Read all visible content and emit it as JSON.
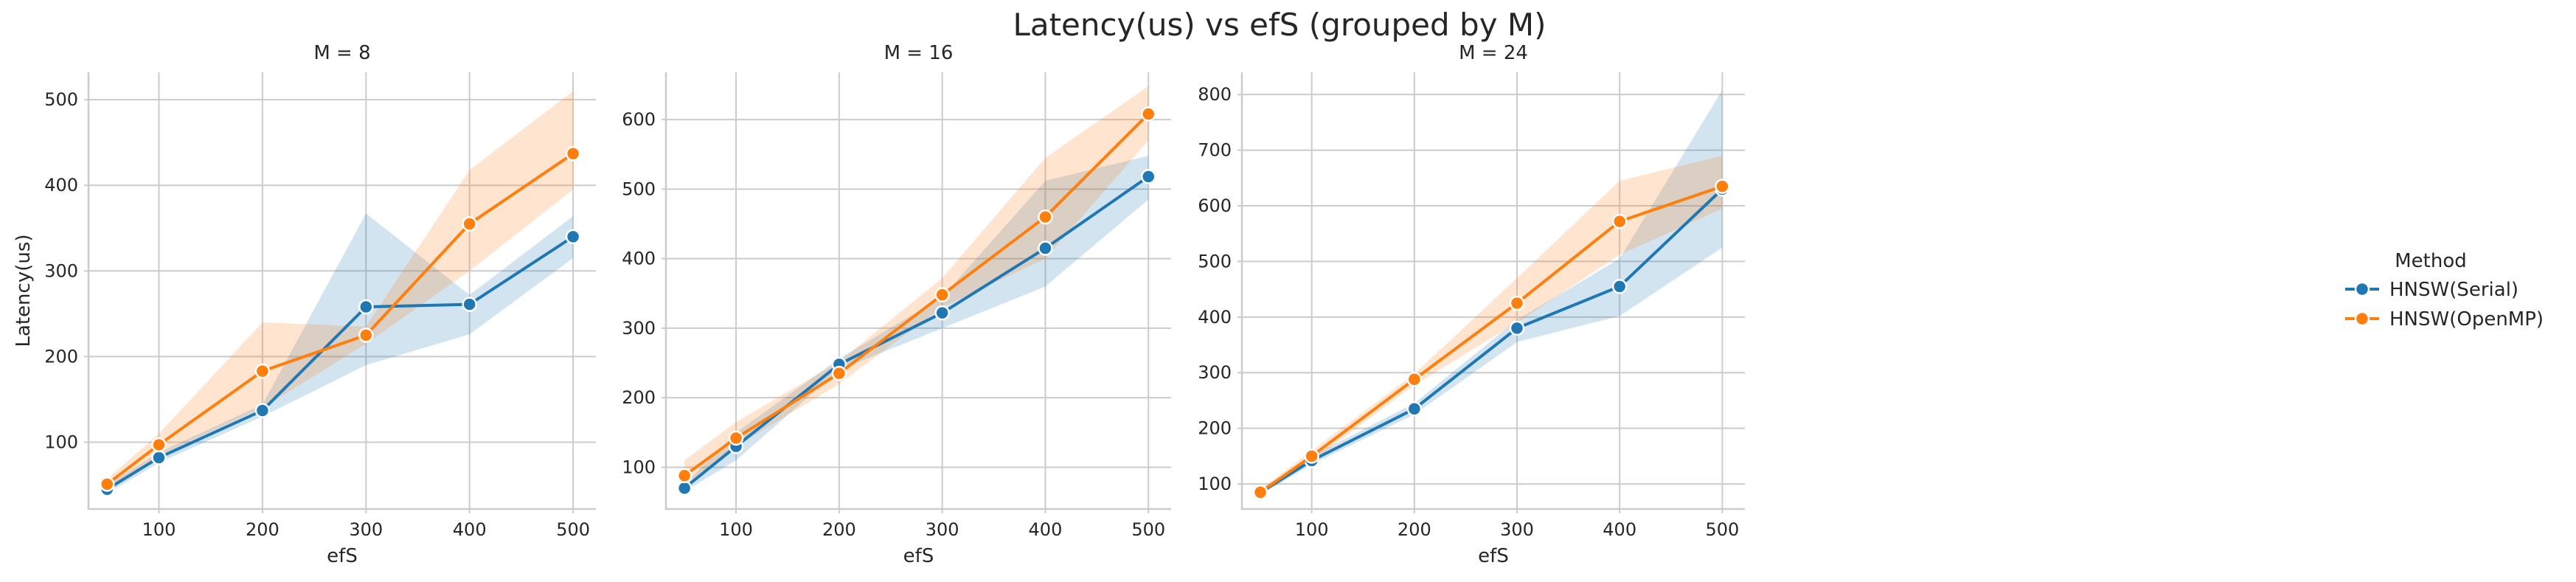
{
  "page_title": "Latency(us) vs efS (grouped by M)",
  "legend": {
    "title": "Method",
    "placement": "right",
    "entries": [
      {
        "name": "HNSW(Serial)",
        "color": "#1f77b4"
      },
      {
        "name": "HNSW(OpenMP)",
        "color": "#ff7f0e"
      }
    ]
  },
  "chart_data": [
    {
      "type": "line",
      "title": "M = 8",
      "xlabel": "efS",
      "ylabel": "Latency(us)",
      "x": [
        50,
        100,
        200,
        300,
        400,
        500
      ],
      "xticks": [
        100,
        200,
        300,
        400,
        500
      ],
      "xlim": [
        32,
        522
      ],
      "yticks": [
        100,
        200,
        300,
        400,
        500
      ],
      "ylim": [
        22,
        532
      ],
      "grid": true,
      "series": [
        {
          "name": "HNSW(Serial)",
          "color": "#1f77b4",
          "values": [
            45,
            82,
            137,
            258,
            261,
            340
          ],
          "ci_low": [
            40,
            76,
            130,
            190,
            226,
            315
          ],
          "ci_high": [
            50,
            88,
            144,
            367,
            272,
            364
          ]
        },
        {
          "name": "HNSW(OpenMP)",
          "color": "#ff7f0e",
          "values": [
            51,
            97,
            183,
            225,
            355,
            437
          ],
          "ci_low": [
            45,
            85,
            140,
            215,
            300,
            395
          ],
          "ci_high": [
            57,
            110,
            240,
            235,
            418,
            510
          ]
        }
      ]
    },
    {
      "type": "line",
      "title": "M = 16",
      "xlabel": "efS",
      "ylabel": "",
      "x": [
        50,
        100,
        200,
        300,
        400,
        500
      ],
      "xticks": [
        100,
        200,
        300,
        400,
        500
      ],
      "xlim": [
        32,
        522
      ],
      "yticks": [
        100,
        200,
        300,
        400,
        500,
        600
      ],
      "ylim": [
        40,
        668
      ],
      "grid": true,
      "series": [
        {
          "name": "HNSW(Serial)",
          "color": "#1f77b4",
          "values": [
            70,
            130,
            248,
            322,
            415,
            518
          ],
          "ci_low": [
            65,
            110,
            240,
            300,
            360,
            485
          ],
          "ci_high": [
            75,
            150,
            256,
            345,
            512,
            548
          ]
        },
        {
          "name": "HNSW(OpenMP)",
          "color": "#ff7f0e",
          "values": [
            88,
            142,
            235,
            348,
            460,
            608
          ],
          "ci_low": [
            75,
            130,
            220,
            330,
            400,
            570
          ],
          "ci_high": [
            110,
            165,
            252,
            372,
            545,
            648
          ]
        }
      ]
    },
    {
      "type": "line",
      "title": "M = 24",
      "xlabel": "efS",
      "ylabel": "",
      "x": [
        50,
        100,
        200,
        300,
        400,
        500
      ],
      "xticks": [
        100,
        200,
        300,
        400,
        500
      ],
      "xlim": [
        32,
        522
      ],
      "yticks": [
        100,
        200,
        300,
        400,
        500,
        600,
        700,
        800
      ],
      "ylim": [
        55,
        840
      ],
      "grid": true,
      "series": [
        {
          "name": "HNSW(Serial)",
          "color": "#1f77b4",
          "values": [
            85,
            142,
            235,
            380,
            455,
            630
          ],
          "ci_low": [
            80,
            135,
            225,
            355,
            402,
            525
          ],
          "ci_high": [
            90,
            150,
            245,
            395,
            505,
            808
          ]
        },
        {
          "name": "HNSW(OpenMP)",
          "color": "#ff7f0e",
          "values": [
            85,
            150,
            288,
            425,
            572,
            635
          ],
          "ci_low": [
            80,
            140,
            278,
            390,
            512,
            595
          ],
          "ci_high": [
            90,
            160,
            298,
            470,
            645,
            690
          ]
        }
      ]
    }
  ]
}
